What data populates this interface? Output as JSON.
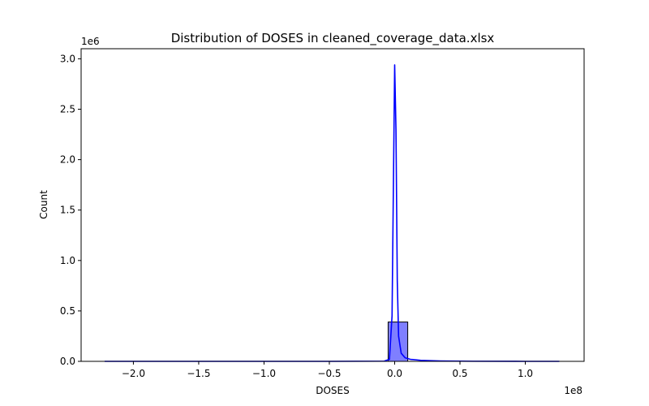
{
  "chart_data": {
    "type": "bar",
    "title": "Distribution of DOSES in cleaned_coverage_data.xlsx",
    "xlabel": "DOSES",
    "ylabel": "Count",
    "x_offset_label": "1e8",
    "y_offset_label": "1e6",
    "xlim": [
      -2.4,
      1.45
    ],
    "ylim": [
      0,
      3.1
    ],
    "x_ticks": [
      -2.0,
      -1.5,
      -1.0,
      -0.5,
      0.0,
      0.5,
      1.0
    ],
    "x_tick_labels": [
      "−2.0",
      "−1.5",
      "−1.0",
      "−0.5",
      "0.0",
      "0.5",
      "1.0"
    ],
    "y_ticks": [
      0.0,
      0.5,
      1.0,
      1.5,
      2.0,
      2.5,
      3.0
    ],
    "y_tick_labels": [
      "0.0",
      "0.5",
      "1.0",
      "1.5",
      "2.0",
      "2.5",
      "3.0"
    ],
    "histogram": {
      "bin_edges": [
        -0.05,
        0.1
      ],
      "counts": [
        0.39
      ],
      "fill_color": "#7f7fff",
      "edge_color": "#000000"
    },
    "kde_line": {
      "color": "#0000ff",
      "x": [
        -2.22,
        -1.5,
        -0.5,
        -0.08,
        -0.04,
        -0.02,
        0.0,
        0.01,
        0.02,
        0.03,
        0.05,
        0.08,
        0.12,
        0.2,
        0.35,
        0.6,
        1.0,
        1.26
      ],
      "y": [
        0.0,
        0.0,
        0.0,
        0.002,
        0.02,
        0.45,
        2.94,
        2.3,
        0.8,
        0.25,
        0.08,
        0.035,
        0.02,
        0.01,
        0.004,
        0.001,
        0.0,
        0.0
      ]
    },
    "grid": false
  }
}
